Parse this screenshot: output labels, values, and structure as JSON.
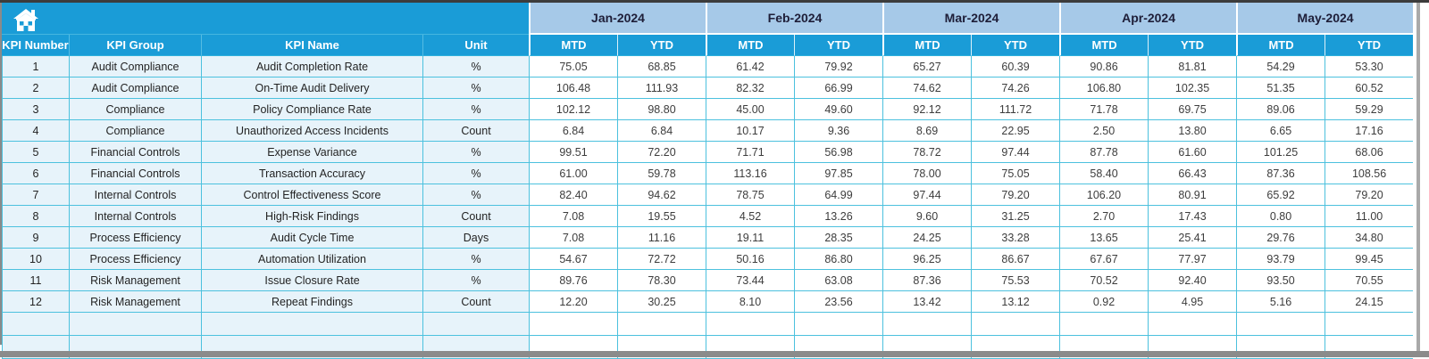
{
  "colors": {
    "header_cyan": "#1A9CD7",
    "month_band_blue": "#A6C9E8",
    "grid_turquoise": "#4CC1DE",
    "left_columns_bg": "#E7F3FA",
    "data_cell_bg": "#FFFFFF",
    "bottom_bar_gray": "#8B8B8B"
  },
  "icons": {
    "home_icon": "home"
  },
  "table": {
    "fixed_headers": [
      "KPI Number",
      "KPI Group",
      "KPI Name",
      "Unit"
    ],
    "months": [
      "Jan-2024",
      "Feb-2024",
      "Mar-2024",
      "Apr-2024",
      "May-2024"
    ],
    "sub_headers": [
      "MTD",
      "YTD"
    ],
    "rows": [
      {
        "number": "1",
        "group": "Audit Compliance",
        "name": "Audit Completion Rate",
        "unit": "%",
        "values": [
          "75.05",
          "68.85",
          "61.42",
          "79.92",
          "65.27",
          "60.39",
          "90.86",
          "81.81",
          "54.29",
          "53.30"
        ]
      },
      {
        "number": "2",
        "group": "Audit Compliance",
        "name": "On-Time Audit Delivery",
        "unit": "%",
        "values": [
          "106.48",
          "111.93",
          "82.32",
          "66.99",
          "74.62",
          "74.26",
          "106.80",
          "102.35",
          "51.35",
          "60.52"
        ]
      },
      {
        "number": "3",
        "group": "Compliance",
        "name": "Policy Compliance Rate",
        "unit": "%",
        "values": [
          "102.12",
          "98.80",
          "45.00",
          "49.60",
          "92.12",
          "111.72",
          "71.78",
          "69.75",
          "89.06",
          "59.29"
        ]
      },
      {
        "number": "4",
        "group": "Compliance",
        "name": "Unauthorized Access Incidents",
        "unit": "Count",
        "values": [
          "6.84",
          "6.84",
          "10.17",
          "9.36",
          "8.69",
          "22.95",
          "2.50",
          "13.80",
          "6.65",
          "17.16"
        ]
      },
      {
        "number": "5",
        "group": "Financial Controls",
        "name": "Expense Variance",
        "unit": "%",
        "values": [
          "99.51",
          "72.20",
          "71.71",
          "56.98",
          "78.72",
          "97.44",
          "87.78",
          "61.60",
          "101.25",
          "68.06"
        ]
      },
      {
        "number": "6",
        "group": "Financial Controls",
        "name": "Transaction Accuracy",
        "unit": "%",
        "values": [
          "61.00",
          "59.78",
          "113.16",
          "97.85",
          "78.00",
          "75.05",
          "58.40",
          "66.43",
          "87.36",
          "108.56"
        ]
      },
      {
        "number": "7",
        "group": "Internal Controls",
        "name": "Control Effectiveness Score",
        "unit": "%",
        "values": [
          "82.40",
          "94.62",
          "78.75",
          "64.99",
          "97.44",
          "79.20",
          "106.20",
          "80.91",
          "65.92",
          "79.20"
        ]
      },
      {
        "number": "8",
        "group": "Internal Controls",
        "name": "High-Risk Findings",
        "unit": "Count",
        "values": [
          "7.08",
          "19.55",
          "4.52",
          "13.26",
          "9.60",
          "31.25",
          "2.70",
          "17.43",
          "0.80",
          "11.00"
        ]
      },
      {
        "number": "9",
        "group": "Process Efficiency",
        "name": "Audit Cycle Time",
        "unit": "Days",
        "values": [
          "7.08",
          "11.16",
          "19.11",
          "28.35",
          "24.25",
          "33.28",
          "13.65",
          "25.41",
          "29.76",
          "34.80"
        ]
      },
      {
        "number": "10",
        "group": "Process Efficiency",
        "name": "Automation Utilization",
        "unit": "%",
        "values": [
          "54.67",
          "72.72",
          "50.16",
          "86.80",
          "96.25",
          "86.67",
          "67.67",
          "77.97",
          "93.79",
          "99.45"
        ]
      },
      {
        "number": "11",
        "group": "Risk Management",
        "name": "Issue Closure Rate",
        "unit": "%",
        "values": [
          "89.76",
          "78.30",
          "73.44",
          "63.08",
          "87.36",
          "75.53",
          "70.52",
          "92.40",
          "93.50",
          "70.55"
        ]
      },
      {
        "number": "12",
        "group": "Risk Management",
        "name": "Repeat Findings",
        "unit": "Count",
        "values": [
          "12.20",
          "30.25",
          "8.10",
          "23.56",
          "13.42",
          "13.12",
          "0.92",
          "4.95",
          "5.16",
          "24.15"
        ]
      }
    ],
    "empty_row_count": 2
  }
}
